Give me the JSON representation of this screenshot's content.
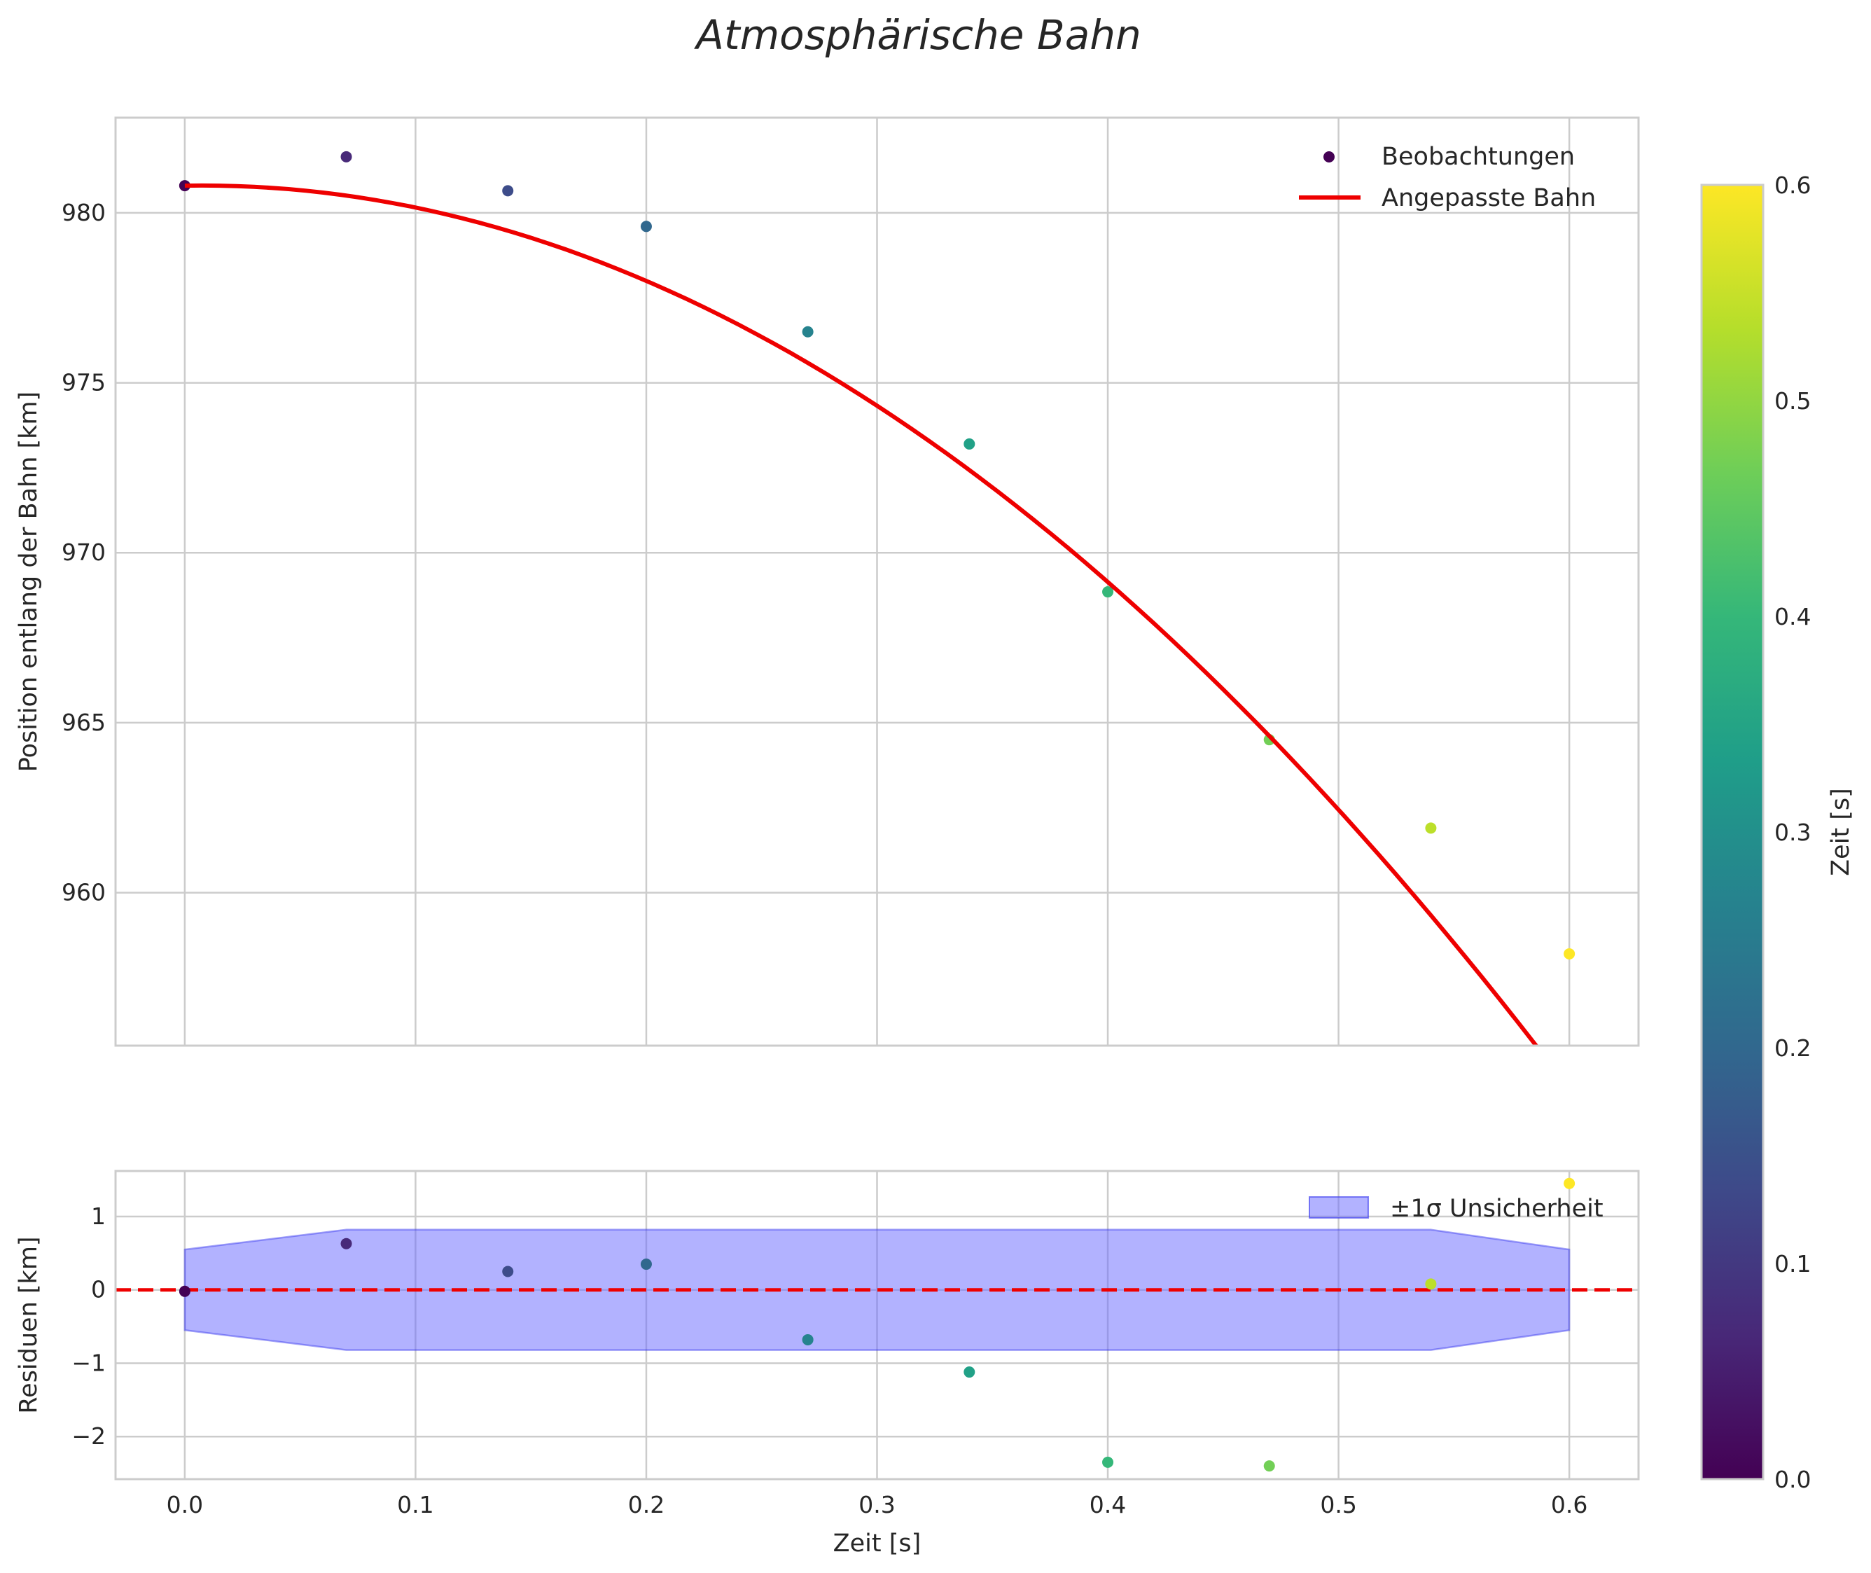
{
  "chart_data": [
    {
      "type": "scatter",
      "title": "Atmosphärische Bahn",
      "xlabel": "",
      "ylabel": "Position entlang der Bahn [km]",
      "xlim": [
        -0.03,
        0.63
      ],
      "ylim": [
        955.5,
        982.8
      ],
      "xticks": [
        0.0,
        0.1,
        0.2,
        0.3,
        0.4,
        0.5,
        0.6
      ],
      "yticks": [
        960,
        965,
        970,
        975,
        980
      ],
      "ytick_labels": [
        "960",
        "965",
        "970",
        "975",
        "980"
      ],
      "legend_position": "top-right",
      "series": [
        {
          "name": "Beobachtungen",
          "kind": "scatter",
          "x": [
            0.0,
            0.07,
            0.14,
            0.2,
            0.27,
            0.34,
            0.4,
            0.47,
            0.54,
            0.6
          ],
          "y": [
            980.8,
            981.65,
            980.65,
            979.6,
            976.5,
            973.2,
            968.85,
            964.5,
            961.9,
            958.2
          ]
        },
        {
          "name": "Angepasste Bahn",
          "kind": "line",
          "color": "#ee0000",
          "poly": [
            980.8,
            1.13,
            -75.7
          ],
          "x_range": [
            0.0,
            0.6
          ]
        }
      ]
    },
    {
      "type": "scatter",
      "title": "",
      "xlabel": "Zeit [s]",
      "ylabel": "Residuen [km]",
      "xlim": [
        -0.03,
        0.63
      ],
      "ylim": [
        -2.58,
        1.62
      ],
      "xticks": [
        0.0,
        0.1,
        0.2,
        0.3,
        0.4,
        0.5,
        0.6
      ],
      "xtick_labels": [
        "0.0",
        "0.1",
        "0.2",
        "0.3",
        "0.4",
        "0.5",
        "0.6"
      ],
      "yticks": [
        -2,
        -1,
        0,
        1
      ],
      "ytick_labels": [
        "−2",
        "−1",
        "0",
        "1"
      ],
      "legend_position": "top-right",
      "series": [
        {
          "name": "Residuen",
          "kind": "scatter",
          "x": [
            0.0,
            0.07,
            0.14,
            0.2,
            0.27,
            0.34,
            0.4,
            0.47,
            0.54,
            0.6
          ],
          "y": [
            -0.02,
            0.63,
            0.25,
            0.35,
            -0.68,
            -1.12,
            -2.35,
            -2.4,
            0.08,
            1.45
          ]
        },
        {
          "name": "±1σ Unsicherheit",
          "kind": "band",
          "color": "#6666ff",
          "x": [
            0.0,
            0.07,
            0.54,
            0.6
          ],
          "upper": [
            0.55,
            0.82,
            0.82,
            0.55
          ],
          "lower": [
            -0.55,
            -0.82,
            -0.82,
            -0.55
          ]
        },
        {
          "name": "zero-line",
          "kind": "hline",
          "y": 0,
          "color": "#ee0000",
          "style": "dashed"
        }
      ]
    }
  ],
  "colorbar": {
    "label": "Zeit [s]",
    "colormap": "viridis",
    "range": [
      0.0,
      0.6
    ],
    "ticks": [
      0.0,
      0.1,
      0.2,
      0.3,
      0.4,
      0.5,
      0.6
    ],
    "tick_labels": [
      "0.0",
      "0.1",
      "0.2",
      "0.3",
      "0.4",
      "0.5",
      "0.6"
    ],
    "stops": [
      "#440154",
      "#482878",
      "#3e4989",
      "#31688e",
      "#26828e",
      "#1f9e89",
      "#35b779",
      "#6ece58",
      "#b5de2b",
      "#fde725"
    ]
  }
}
